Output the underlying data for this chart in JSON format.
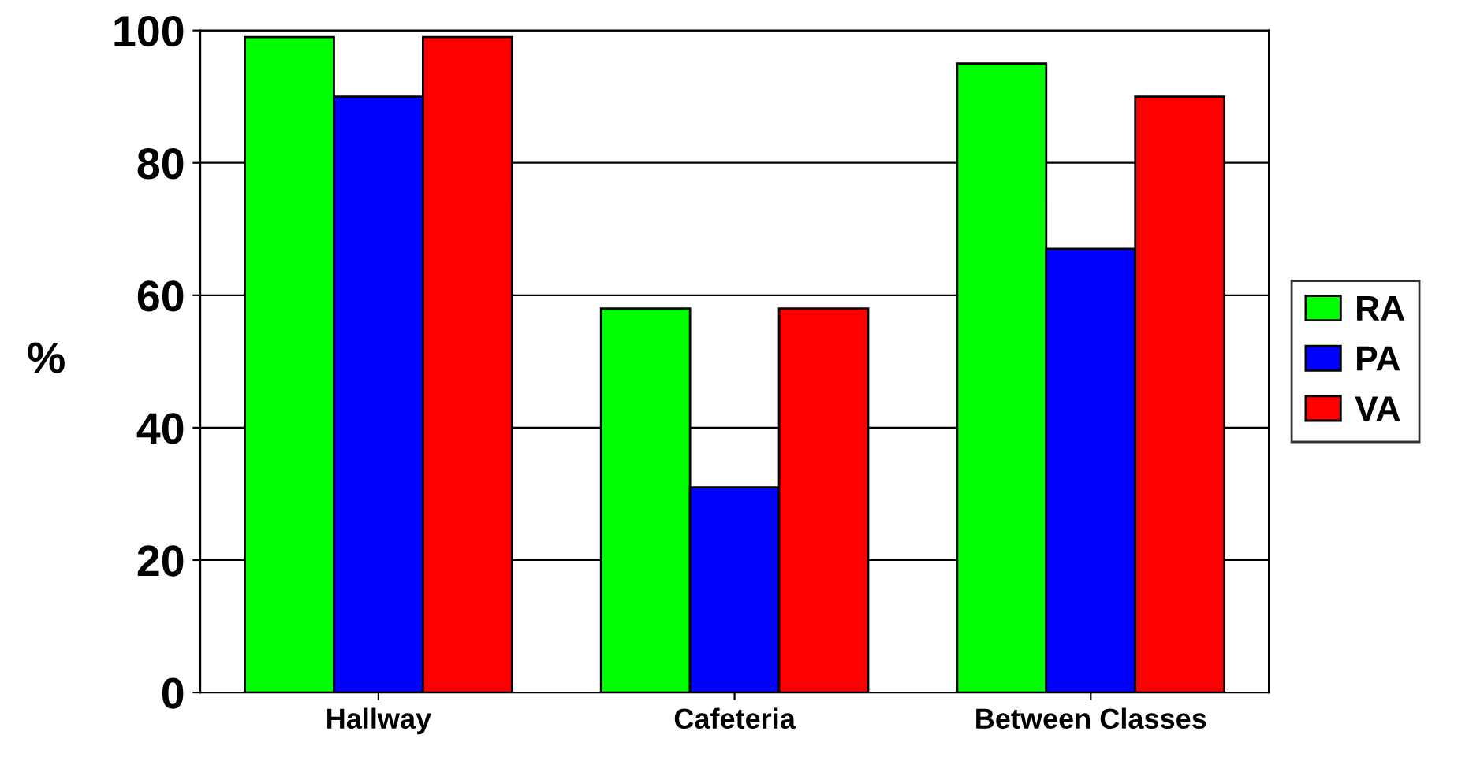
{
  "chart_data": {
    "type": "bar",
    "ylabel": "%",
    "categories": [
      "Hallway",
      "Cafeteria",
      "Between Classes"
    ],
    "series": [
      {
        "name": "RA",
        "color": "#00ff00",
        "values": [
          99,
          58,
          95
        ]
      },
      {
        "name": "PA",
        "color": "#0000ff",
        "values": [
          90,
          31,
          67
        ]
      },
      {
        "name": "VA",
        "color": "#ff0000",
        "values": [
          99,
          58,
          90
        ]
      }
    ],
    "ylim": [
      0,
      100
    ],
    "yticks": [
      0,
      20,
      40,
      60,
      80,
      100
    ],
    "grid": "y",
    "legend": "right"
  }
}
